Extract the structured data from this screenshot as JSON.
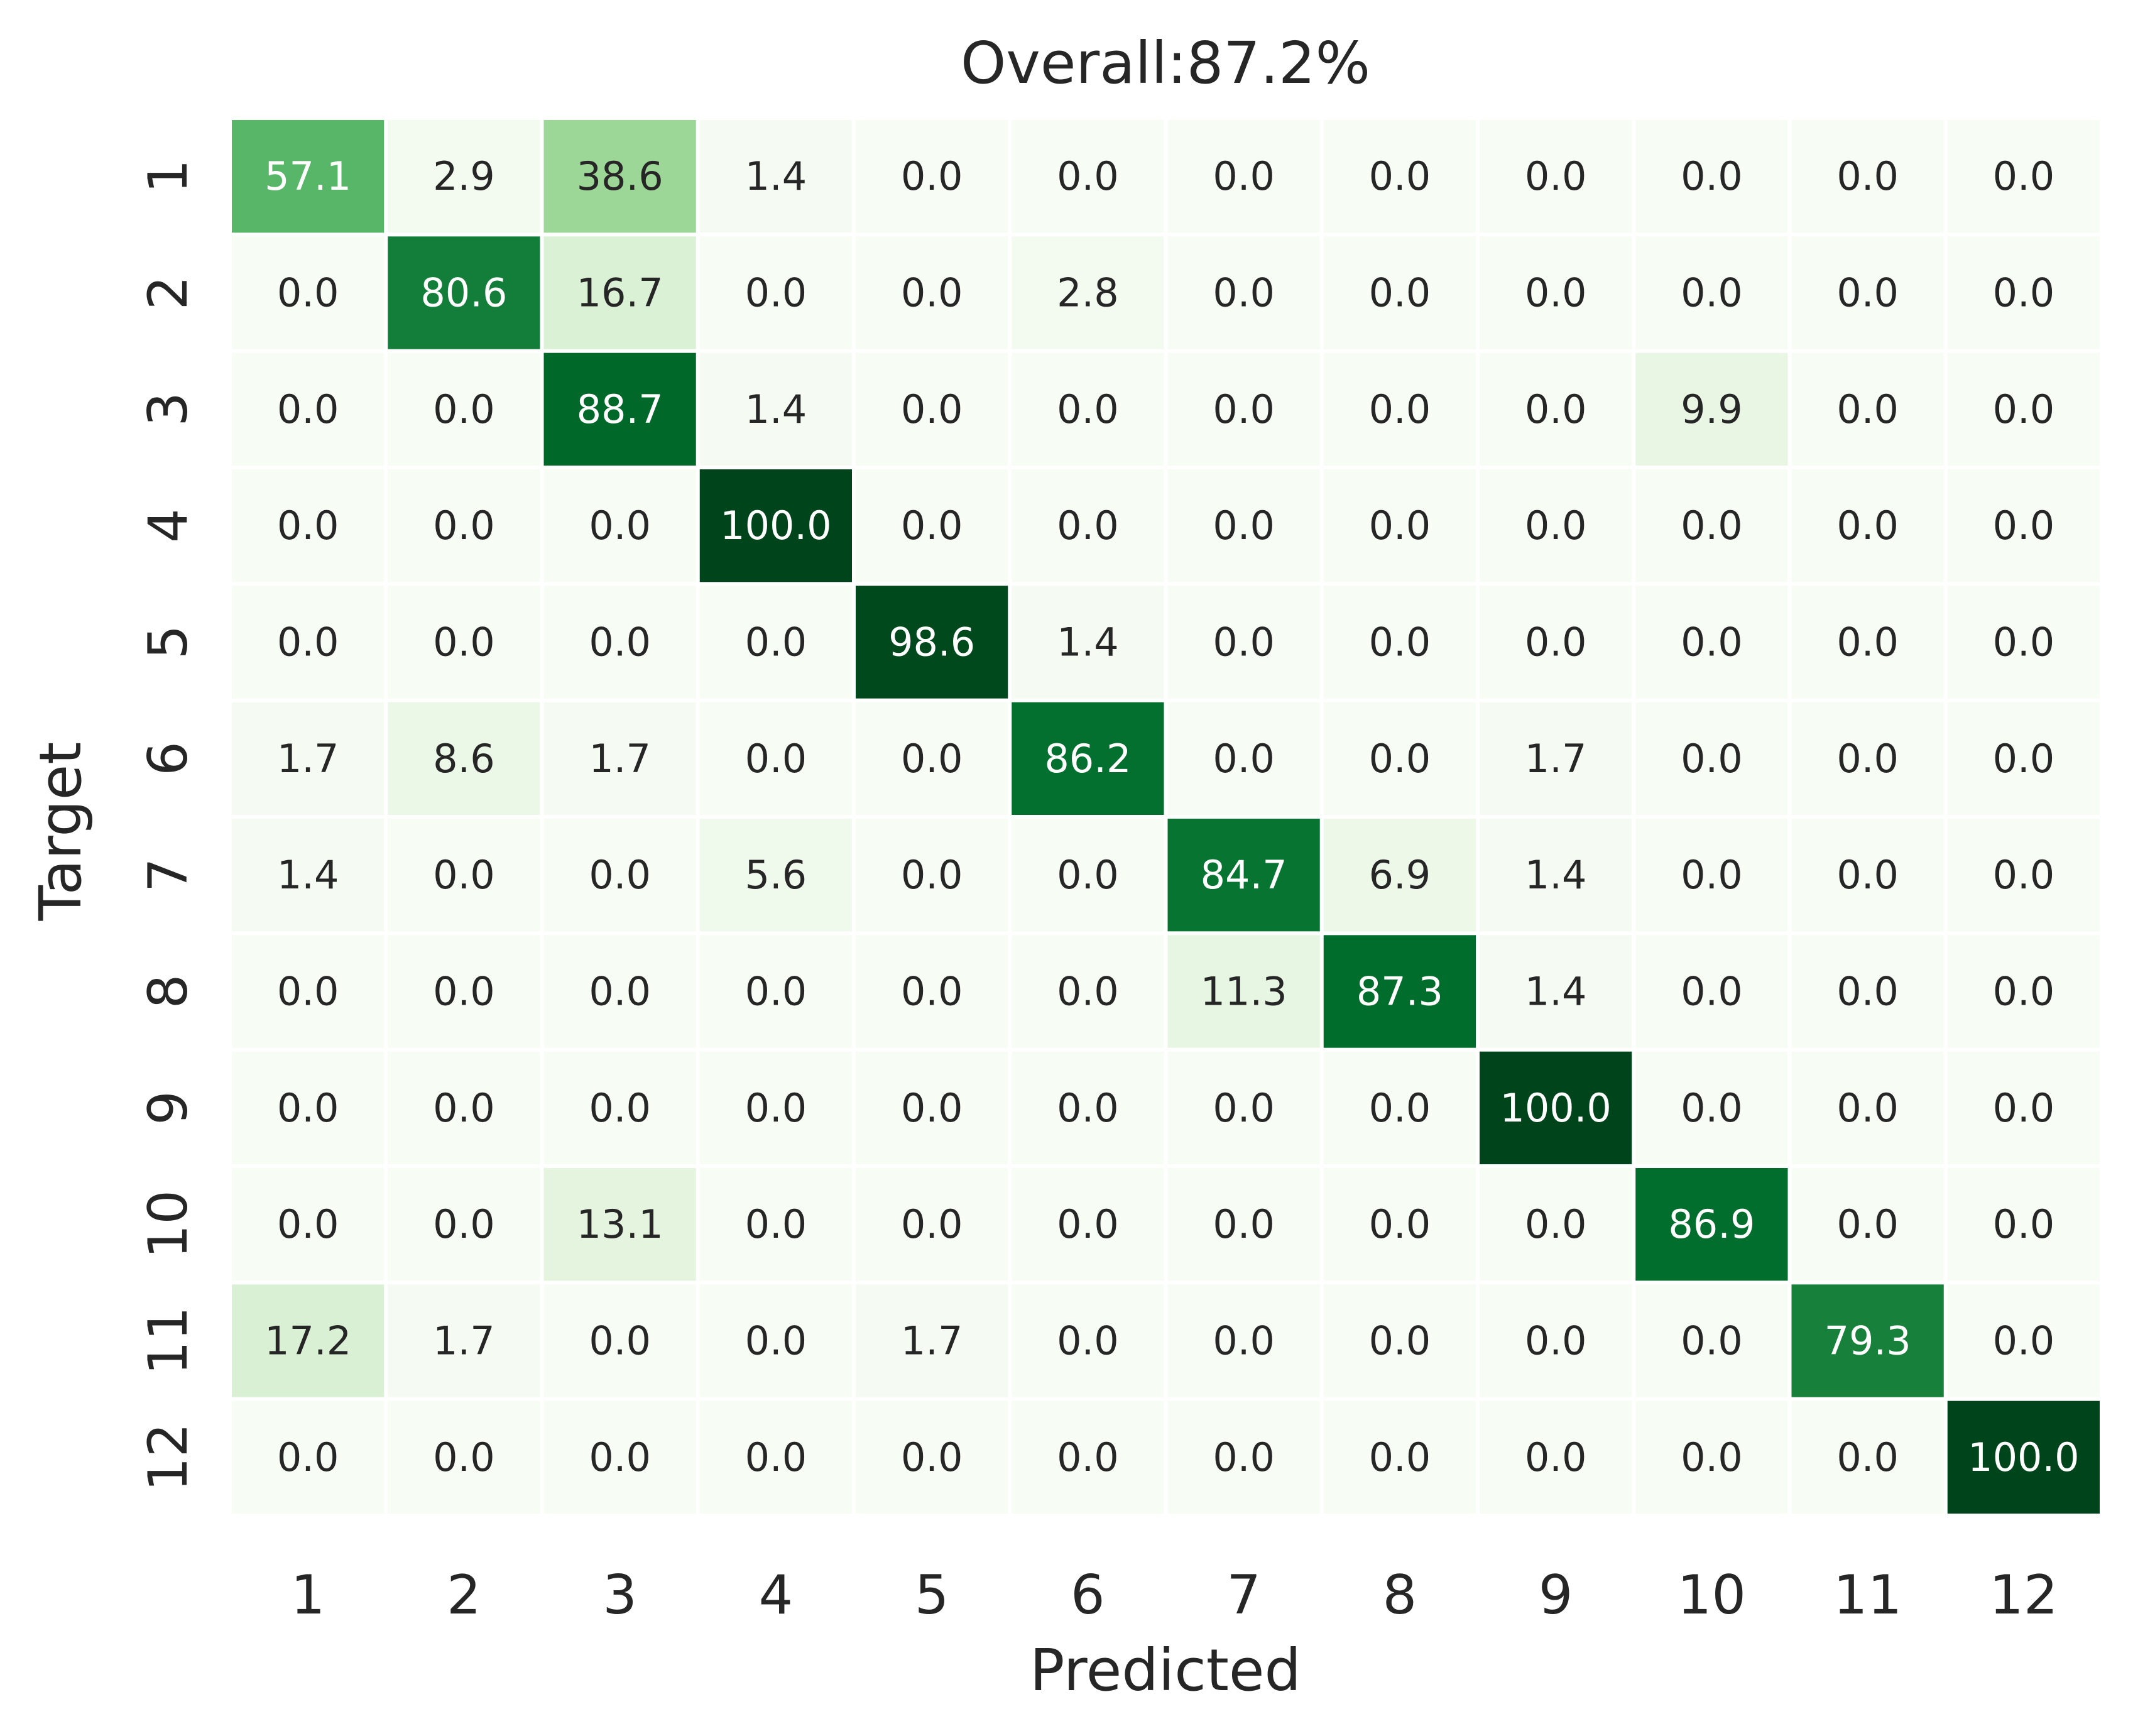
{
  "chart_data": {
    "type": "heatmap",
    "title": "Overall:87.2%",
    "xlabel": "Predicted",
    "ylabel": "Target",
    "x_categories": [
      "1",
      "2",
      "3",
      "4",
      "5",
      "6",
      "7",
      "8",
      "9",
      "10",
      "11",
      "12"
    ],
    "y_categories": [
      "1",
      "2",
      "3",
      "4",
      "5",
      "6",
      "7",
      "8",
      "9",
      "10",
      "11",
      "12"
    ],
    "values": [
      [
        57.1,
        2.9,
        38.6,
        1.4,
        0.0,
        0.0,
        0.0,
        0.0,
        0.0,
        0.0,
        0.0,
        0.0
      ],
      [
        0.0,
        80.6,
        16.7,
        0.0,
        0.0,
        2.8,
        0.0,
        0.0,
        0.0,
        0.0,
        0.0,
        0.0
      ],
      [
        0.0,
        0.0,
        88.7,
        1.4,
        0.0,
        0.0,
        0.0,
        0.0,
        0.0,
        9.9,
        0.0,
        0.0
      ],
      [
        0.0,
        0.0,
        0.0,
        100.0,
        0.0,
        0.0,
        0.0,
        0.0,
        0.0,
        0.0,
        0.0,
        0.0
      ],
      [
        0.0,
        0.0,
        0.0,
        0.0,
        98.6,
        1.4,
        0.0,
        0.0,
        0.0,
        0.0,
        0.0,
        0.0
      ],
      [
        1.7,
        8.6,
        1.7,
        0.0,
        0.0,
        86.2,
        0.0,
        0.0,
        1.7,
        0.0,
        0.0,
        0.0
      ],
      [
        1.4,
        0.0,
        0.0,
        5.6,
        0.0,
        0.0,
        84.7,
        6.9,
        1.4,
        0.0,
        0.0,
        0.0
      ],
      [
        0.0,
        0.0,
        0.0,
        0.0,
        0.0,
        0.0,
        11.3,
        87.3,
        1.4,
        0.0,
        0.0,
        0.0
      ],
      [
        0.0,
        0.0,
        0.0,
        0.0,
        0.0,
        0.0,
        0.0,
        0.0,
        100.0,
        0.0,
        0.0,
        0.0
      ],
      [
        0.0,
        0.0,
        13.1,
        0.0,
        0.0,
        0.0,
        0.0,
        0.0,
        0.0,
        86.9,
        0.0,
        0.0
      ],
      [
        17.2,
        1.7,
        0.0,
        0.0,
        1.7,
        0.0,
        0.0,
        0.0,
        0.0,
        0.0,
        79.3,
        0.0
      ],
      [
        0.0,
        0.0,
        0.0,
        0.0,
        0.0,
        0.0,
        0.0,
        0.0,
        0.0,
        0.0,
        0.0,
        100.0
      ]
    ],
    "value_range": [
      0,
      100
    ],
    "colormap": "Greens",
    "colorbar": false,
    "grid": false
  }
}
